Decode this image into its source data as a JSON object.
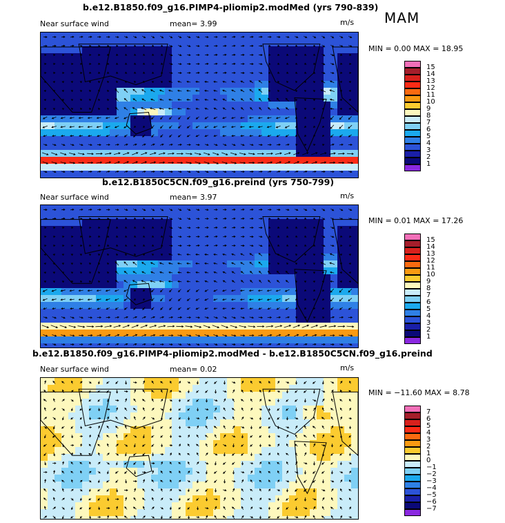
{
  "season": "MAM",
  "panels": [
    {
      "title": "b.e12.B1850.f09_g16.PIMP4-pliomip2.modMed (yrs 790-839)",
      "variable": "Near surface wind",
      "mean_label": "mean=",
      "mean_value": "3.99",
      "units": "m/s",
      "minmax": "MIN =    0.00 MAX =   18.95",
      "scale": "abs",
      "colorbar": {
        "labels": [
          "15",
          "14",
          "13",
          "12",
          "11",
          "10",
          "9",
          "8",
          "7",
          "6",
          "5",
          "4",
          "3",
          "2",
          "1"
        ],
        "colors": [
          "#f26fb8",
          "#a51e2b",
          "#d8211d",
          "#fb2b16",
          "#fb6a10",
          "#f99a12",
          "#fbcb30",
          "#fdf8bd",
          "#c9ecf9",
          "#7fd0f5",
          "#1ba9ee",
          "#2f80e6",
          "#2c53d8",
          "#1a1fa8",
          "#0b0978",
          "#8b29e0"
        ]
      }
    },
    {
      "title": "b.e12.B1850C5CN.f09_g16.preind (yrs 750-799)",
      "variable": "Near surface wind",
      "mean_label": "mean=",
      "mean_value": "3.97",
      "units": "m/s",
      "minmax": "MIN =    0.01 MAX =   17.26",
      "scale": "abs",
      "colorbar": {
        "labels": [
          "15",
          "14",
          "13",
          "12",
          "11",
          "10",
          "9",
          "8",
          "7",
          "6",
          "5",
          "4",
          "3",
          "2",
          "1"
        ],
        "colors": [
          "#f26fb8",
          "#a51e2b",
          "#d8211d",
          "#fb2b16",
          "#fb6a10",
          "#f99a12",
          "#fbcb30",
          "#fdf8bd",
          "#c9ecf9",
          "#7fd0f5",
          "#1ba9ee",
          "#2f80e6",
          "#2c53d8",
          "#1a1fa8",
          "#0b0978",
          "#8b29e0"
        ]
      }
    },
    {
      "title": "b.e12.B1850.f09_g16.PIMP4-pliomip2.modMed - b.e12.B1850C5CN.f09_g16.preind",
      "variable": "Near surface wind",
      "mean_label": "mean=",
      "mean_value": "0.02",
      "units": "m/s",
      "minmax": "MIN = −11.60 MAX =    8.78",
      "scale": "diff",
      "colorbar": {
        "labels": [
          "7",
          "6",
          "5",
          "4",
          "3",
          "2",
          "1",
          "0",
          "−1",
          "−2",
          "−3",
          "−4",
          "−5",
          "−6",
          "−7"
        ],
        "colors": [
          "#f26fb8",
          "#a51e2b",
          "#d8211d",
          "#fb2b16",
          "#fb6a10",
          "#f99a12",
          "#fbcb30",
          "#fdf8bd",
          "#c9ecf9",
          "#7fd0f5",
          "#1ba9ee",
          "#2f80e6",
          "#2c53d8",
          "#1a1fa8",
          "#0b0978",
          "#8b29e0"
        ]
      }
    }
  ]
}
